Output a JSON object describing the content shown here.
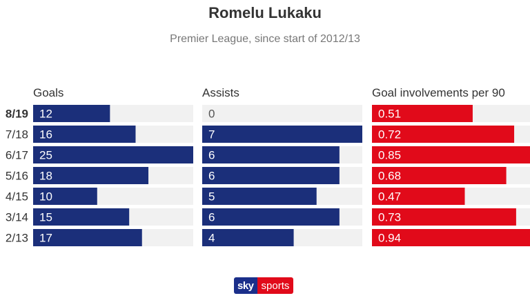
{
  "title": "Romelu Lukaku",
  "subtitle": "Premier League, since start of 2012/13",
  "logo": {
    "part1": "sky",
    "part2": "sports"
  },
  "colors": {
    "goals": "#1b2f7a",
    "assists": "#1b2f7a",
    "involvements": "#e10a1a",
    "track": "#f1f1f1",
    "text": "#333333"
  },
  "chart_data": {
    "type": "bar",
    "orientation": "horizontal",
    "categories": [
      "2018/19",
      "2017/18",
      "2016/17",
      "2015/16",
      "2014/15",
      "2013/14",
      "2012/13"
    ],
    "category_labels_visible": [
      "8/19",
      "7/18",
      "6/17",
      "5/16",
      "4/15",
      "3/14",
      "2/13"
    ],
    "highlighted_category": "2018/19",
    "panels": [
      {
        "name": "Goals",
        "values": [
          12,
          16,
          25,
          18,
          10,
          15,
          17
        ],
        "labels": [
          "12",
          "16",
          "25",
          "18",
          "10",
          "15",
          "17"
        ],
        "max": 25
      },
      {
        "name": "Assists",
        "values": [
          0,
          7,
          6,
          6,
          5,
          6,
          4
        ],
        "labels": [
          "0",
          "7",
          "6",
          "6",
          "5",
          "6",
          "4"
        ],
        "max": 7
      },
      {
        "name": "Goal involvements per 90",
        "values": [
          0.51,
          0.72,
          0.85,
          0.68,
          0.47,
          0.73,
          0.94
        ],
        "labels": [
          "0.51",
          "0.72",
          "0.85",
          "0.68",
          "0.47",
          "0.73",
          "0.94"
        ],
        "max": 0.94
      }
    ]
  }
}
